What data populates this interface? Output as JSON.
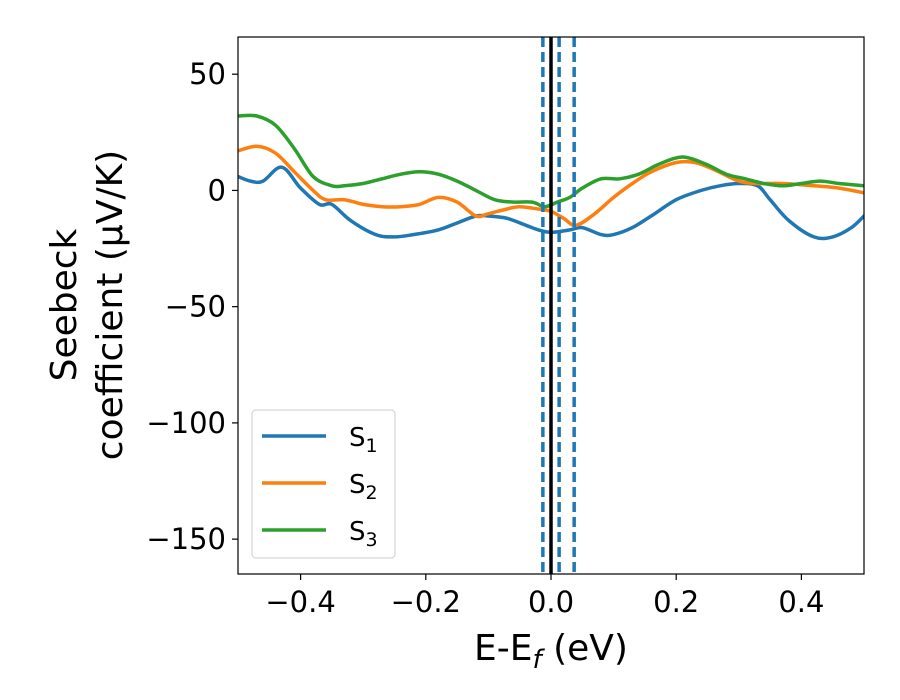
{
  "chart_data": {
    "type": "line",
    "xlabel": "E-E_f (eV)",
    "xlabel_parts": {
      "main": "E-E",
      "sub": "f",
      "tail": " (eV)"
    },
    "ylabel": "Seebeck coefficient (μV/K)",
    "ylabel_lines": [
      "Seebeck",
      "coefficient  (μV/K)"
    ],
    "xlim": [
      -0.5,
      0.5
    ],
    "ylim": [
      -165,
      66
    ],
    "xticks": [
      -0.4,
      -0.2,
      0.0,
      0.2,
      0.4
    ],
    "xtick_labels": [
      "−0.4",
      "−0.2",
      "0.0",
      "0.2",
      "0.4"
    ],
    "yticks": [
      50,
      0,
      -50,
      -100,
      -150
    ],
    "ytick_labels": [
      "50",
      "0",
      "−50",
      "−100",
      "−150"
    ],
    "grid": false,
    "legend_position": "lower-left",
    "vlines": [
      {
        "x": 0.0,
        "style": "solid",
        "color": "#000000"
      },
      {
        "x": -0.013,
        "style": "dashed",
        "color": "#1f77b4"
      },
      {
        "x": 0.013,
        "style": "dashed",
        "color": "#1f77b4"
      },
      {
        "x": 0.037,
        "style": "dashed",
        "color": "#1f77b4"
      }
    ],
    "series": [
      {
        "name": "S1",
        "label_main": "S",
        "label_sub": "1",
        "color": "#1f77b4",
        "x": [
          -0.5,
          -0.48,
          -0.46,
          -0.43,
          -0.4,
          -0.37,
          -0.35,
          -0.32,
          -0.28,
          -0.25,
          -0.22,
          -0.18,
          -0.15,
          -0.12,
          -0.1,
          -0.07,
          -0.04,
          -0.02,
          0.0,
          0.03,
          0.05,
          0.08,
          0.1,
          0.13,
          0.16,
          0.2,
          0.24,
          0.27,
          0.3,
          0.33,
          0.35,
          0.38,
          0.42,
          0.45,
          0.48,
          0.5
        ],
        "y": [
          6,
          4,
          4,
          10,
          1,
          -6,
          -6,
          -13,
          -19,
          -20,
          -19,
          -17,
          -14,
          -11,
          -11,
          -12,
          -15,
          -17,
          -18,
          -17,
          -16,
          -19,
          -19,
          -16,
          -11,
          -4,
          0,
          2,
          3,
          2,
          -4,
          -13,
          -20,
          -20,
          -16,
          -11
        ]
      },
      {
        "name": "S2",
        "label_main": "S",
        "label_sub": "2",
        "color": "#ff7f0e",
        "x": [
          -0.5,
          -0.47,
          -0.44,
          -0.41,
          -0.38,
          -0.36,
          -0.33,
          -0.3,
          -0.27,
          -0.24,
          -0.21,
          -0.18,
          -0.15,
          -0.12,
          -0.1,
          -0.07,
          -0.05,
          -0.02,
          0.0,
          0.02,
          0.04,
          0.07,
          0.1,
          0.13,
          0.16,
          0.2,
          0.23,
          0.26,
          0.3,
          0.33,
          0.37,
          0.42,
          0.46,
          0.5
        ],
        "y": [
          17,
          19,
          16,
          8,
          0,
          -4,
          -4,
          -6,
          -7,
          -7,
          -6,
          -3,
          -5,
          -11,
          -10,
          -8,
          -7,
          -8,
          -9,
          -12,
          -15,
          -10,
          -3,
          3,
          8,
          12,
          12,
          9,
          4,
          3,
          3,
          2,
          1,
          -1
        ]
      },
      {
        "name": "S3",
        "label_main": "S",
        "label_sub": "3",
        "color": "#2ca02c",
        "x": [
          -0.5,
          -0.47,
          -0.44,
          -0.41,
          -0.38,
          -0.35,
          -0.33,
          -0.3,
          -0.27,
          -0.24,
          -0.21,
          -0.18,
          -0.15,
          -0.12,
          -0.09,
          -0.06,
          -0.03,
          -0.01,
          0.01,
          0.03,
          0.05,
          0.08,
          0.11,
          0.14,
          0.17,
          0.2,
          0.22,
          0.25,
          0.28,
          0.31,
          0.34,
          0.37,
          0.4,
          0.43,
          0.46,
          0.5
        ],
        "y": [
          32,
          32,
          28,
          18,
          6,
          2,
          2,
          3,
          5,
          7,
          8,
          7,
          4,
          0,
          -4,
          -5,
          -5,
          -7,
          -5,
          -3,
          1,
          5,
          5,
          7,
          11,
          14,
          14,
          11,
          7,
          5,
          3,
          2,
          3,
          4,
          3,
          2
        ]
      }
    ]
  }
}
